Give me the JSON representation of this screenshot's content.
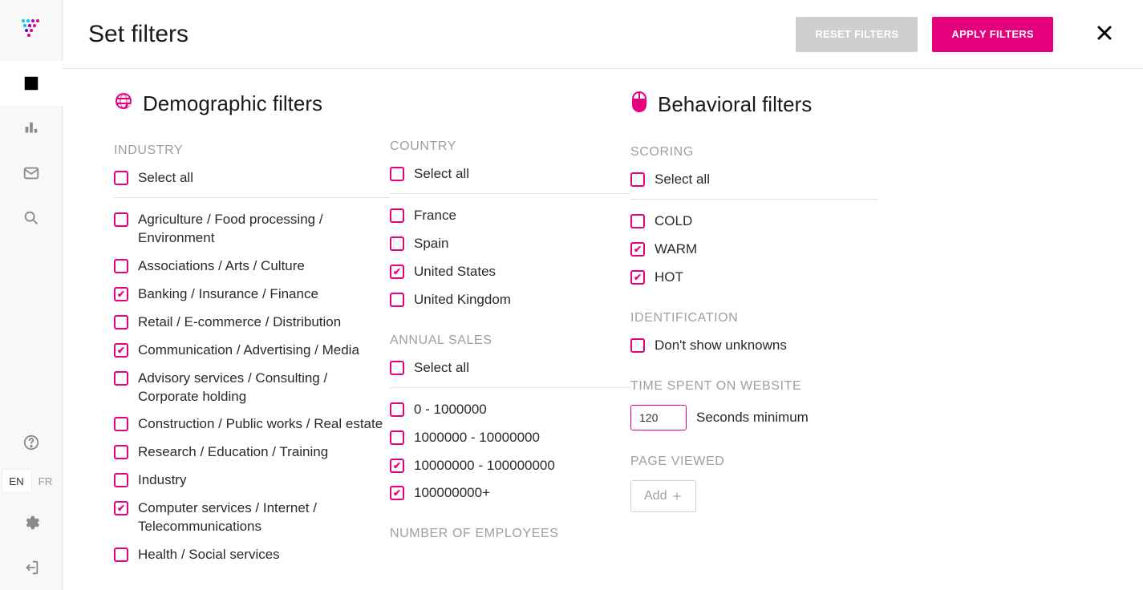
{
  "colors": {
    "accent": "#e6007e",
    "muted": "#9aa0a6",
    "border": "#e5e5e5"
  },
  "header": {
    "title": "Set filters",
    "reset_label": "RESET FILTERS",
    "apply_label": "APPLY FILTERS"
  },
  "sidebar": {
    "lang": {
      "en": "EN",
      "fr": "FR",
      "active": "en"
    }
  },
  "demographic": {
    "title": "Demographic filters",
    "industry": {
      "label": "INDUSTRY",
      "select_all": {
        "label": "Select all",
        "checked": false
      },
      "items": [
        {
          "label": "Agriculture / Food processing / Environment",
          "checked": false
        },
        {
          "label": "Associations / Arts / Culture",
          "checked": false
        },
        {
          "label": "Banking / Insurance / Finance",
          "checked": true
        },
        {
          "label": "Retail / E-commerce / Distribution",
          "checked": false
        },
        {
          "label": "Communication / Advertising / Media",
          "checked": true
        },
        {
          "label": "Advisory services / Consulting / Corporate holding",
          "checked": false
        },
        {
          "label": "Construction / Public works / Real estate",
          "checked": false
        },
        {
          "label": "Research / Education / Training",
          "checked": false
        },
        {
          "label": "Industry",
          "checked": false
        },
        {
          "label": "Computer services / Internet / Telecommunications",
          "checked": true
        },
        {
          "label": "Health / Social services",
          "checked": false
        }
      ]
    },
    "country": {
      "label": "COUNTRY",
      "select_all": {
        "label": "Select all",
        "checked": false
      },
      "items": [
        {
          "label": "France",
          "checked": false
        },
        {
          "label": "Spain",
          "checked": false
        },
        {
          "label": "United States",
          "checked": true
        },
        {
          "label": "United Kingdom",
          "checked": false
        }
      ]
    },
    "annual_sales": {
      "label": "ANNUAL SALES",
      "select_all": {
        "label": "Select all",
        "checked": false
      },
      "items": [
        {
          "label": "0 - 1000000",
          "checked": false
        },
        {
          "label": "1000000 - 10000000",
          "checked": false
        },
        {
          "label": "10000000 - 100000000",
          "checked": true
        },
        {
          "label": "100000000+",
          "checked": true
        }
      ]
    },
    "employees": {
      "label": "NUMBER OF EMPLOYEES"
    }
  },
  "behavioral": {
    "title": "Behavioral filters",
    "scoring": {
      "label": "SCORING",
      "select_all": {
        "label": "Select all",
        "checked": false
      },
      "items": [
        {
          "label": "COLD",
          "checked": false
        },
        {
          "label": "WARM",
          "checked": true
        },
        {
          "label": "HOT",
          "checked": true
        }
      ]
    },
    "identification": {
      "label": "IDENTIFICATION",
      "items": [
        {
          "label": "Don't show unknowns",
          "checked": false
        }
      ]
    },
    "time_spent": {
      "label": "TIME SPENT ON WEBSITE",
      "value": "120",
      "suffix": "Seconds minimum"
    },
    "page_viewed": {
      "label": "PAGE VIEWED",
      "add_label": "Add"
    }
  }
}
